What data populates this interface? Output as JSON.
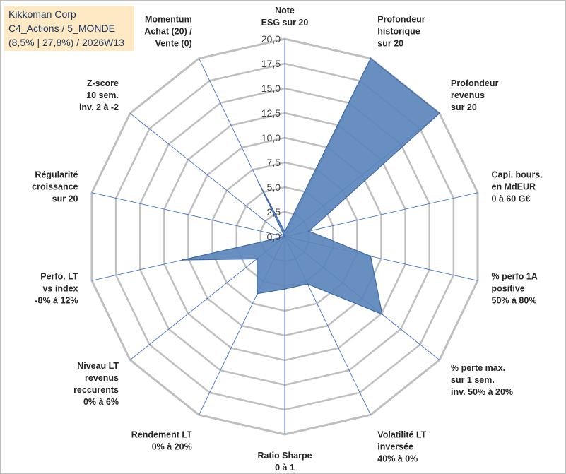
{
  "title_box": {
    "line1": "Kikkoman Corp",
    "line2": "C4_Actions / 5_MONDE",
    "line3": "(8,5% | 27,8%) / 2026W13"
  },
  "colors": {
    "fill": "#5b86ba",
    "stroke": "#3e6aa8",
    "grid": "#bfbfbf",
    "spoke": "#4472c4",
    "title_bg": "#fde9c4"
  },
  "chart_data": {
    "type": "radar",
    "rmin": 0,
    "rmax": 20,
    "tick_step": 2.5,
    "tick_labels": [
      "0,0",
      "2,5",
      "5,0",
      "7,5",
      "10,0",
      "12,5",
      "15,0",
      "17,5",
      "20,0"
    ],
    "grid": true,
    "legend": "none",
    "axes": [
      {
        "label": [
          "Note",
          "ESG sur 20"
        ]
      },
      {
        "label": [
          "Profondeur",
          "historique",
          "sur 20"
        ]
      },
      {
        "label": [
          "Profondeur",
          "revenus",
          "sur 20"
        ]
      },
      {
        "label": [
          "Capi. bours.",
          "en MdEUR",
          "0 à 60 G€"
        ]
      },
      {
        "label": [
          "% perfo 1A",
          "positive",
          "50% à 80%"
        ]
      },
      {
        "label": [
          "% perte max.",
          "sur 1 sem.",
          "inv. 50% à 20%"
        ]
      },
      {
        "label": [
          "Volatilité LT",
          "inversée",
          "40% à 0%"
        ]
      },
      {
        "label": [
          "Ratio Sharpe",
          "0 à 1"
        ]
      },
      {
        "label": [
          "Rendement LT",
          "0% à 20%"
        ]
      },
      {
        "label": [
          "Niveau LT",
          "revenus",
          "reccurents",
          "0% à 6%"
        ]
      },
      {
        "label": [
          "Perfo. LT",
          "vs index",
          "-8% à 12%"
        ]
      },
      {
        "label": [
          "Régularité",
          "croissance",
          "sur 20"
        ]
      },
      {
        "label": [
          "Z-score",
          "10 sem.",
          "inv. 2 à -2"
        ]
      },
      {
        "label": [
          "Momentum",
          "Achat (20) /",
          "Vente (0)"
        ]
      }
    ],
    "values": [
      0.5,
      20,
      20,
      2.5,
      8.9,
      12.6,
      5.3,
      5.3,
      6.4,
      3.6,
      10.6,
      0,
      0,
      6.1
    ]
  }
}
